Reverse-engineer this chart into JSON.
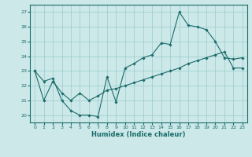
{
  "xlabel": "Humidex (Indice chaleur)",
  "bg_color": "#cce8e8",
  "grid_color": "#99cccc",
  "line_color": "#1a6b6b",
  "xlim": [
    -0.5,
    23.5
  ],
  "ylim": [
    19.5,
    27.5
  ],
  "xticks": [
    0,
    1,
    2,
    3,
    4,
    5,
    6,
    7,
    8,
    9,
    10,
    11,
    12,
    13,
    14,
    15,
    16,
    17,
    18,
    19,
    20,
    21,
    22,
    23
  ],
  "yticks": [
    20,
    21,
    22,
    23,
    24,
    25,
    26,
    27
  ],
  "s1x": [
    0,
    1,
    2,
    3,
    4,
    5,
    6,
    7,
    8,
    9,
    10,
    11,
    12,
    13,
    14,
    15,
    16,
    17,
    18,
    19,
    20,
    21,
    22,
    23
  ],
  "s1y": [
    23.0,
    22.3,
    22.5,
    21.0,
    20.3,
    20.0,
    20.0,
    19.9,
    22.6,
    20.9,
    23.2,
    23.5,
    23.9,
    24.1,
    24.9,
    24.8,
    27.0,
    26.1,
    26.0,
    25.8,
    25.0,
    23.9,
    23.8,
    23.9
  ],
  "s2x": [
    0,
    1,
    2,
    3,
    4,
    5,
    6,
    7,
    8,
    9,
    10,
    11,
    12,
    13,
    14,
    15,
    16,
    17,
    18,
    19,
    20,
    21,
    22,
    23
  ],
  "s2y": [
    23.0,
    21.0,
    22.3,
    21.5,
    21.0,
    21.5,
    21.0,
    21.3,
    21.7,
    21.8,
    22.0,
    22.2,
    22.4,
    22.6,
    22.8,
    23.0,
    23.2,
    23.5,
    23.7,
    23.9,
    24.1,
    24.3,
    23.2,
    23.2
  ]
}
